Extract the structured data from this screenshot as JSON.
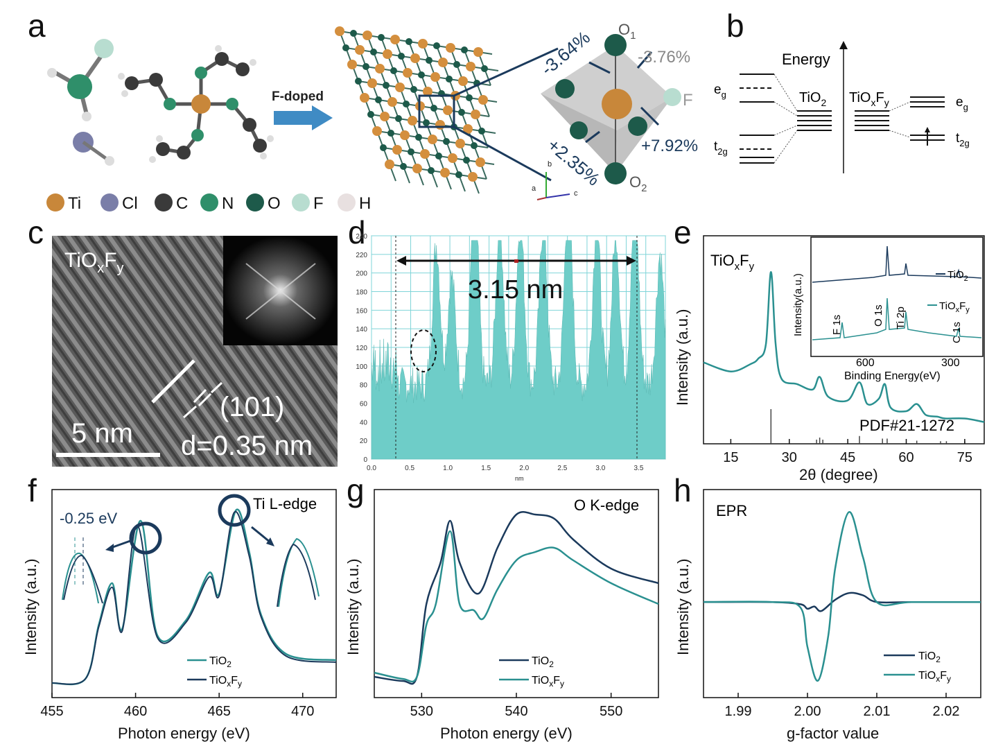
{
  "labels": {
    "a": "a",
    "b": "b",
    "c": "c",
    "d": "d",
    "e": "e",
    "f": "f",
    "g": "g",
    "h": "h"
  },
  "panel_a": {
    "arrow_label": "F-doped",
    "pct_1": "-3.64%",
    "pct_2": "-3.76%",
    "pct_3": "+2.35%",
    "pct_4": "+7.92%",
    "o1": "O",
    "o1_sub": "1",
    "o2": "O",
    "o2_sub": "2",
    "f": "F",
    "legend": [
      {
        "sym": "Ti",
        "color": "#c8873a"
      },
      {
        "sym": "Cl",
        "color": "#7a7ea8"
      },
      {
        "sym": "C",
        "color": "#3a3a3a"
      },
      {
        "sym": "N",
        "color": "#2f8f6a"
      },
      {
        "sym": "O",
        "color": "#1d5a4a"
      },
      {
        "sym": "F",
        "color": "#b8ddd0"
      },
      {
        "sym": "H",
        "color": "#e8e0e0"
      }
    ],
    "axis_b": "b",
    "axis_a": "a",
    "axis_c": "c"
  },
  "panel_b": {
    "energy": "Energy",
    "eg": "e",
    "eg_sub": "g",
    "t2g": "t",
    "t2g_sub": "2g",
    "tio2": "TiO",
    "tio2_sub": "2",
    "tioxfy": "TiO",
    "x": "x",
    "F": "F",
    "y": "y"
  },
  "panel_c": {
    "title": "TiO",
    "x": "x",
    "F": "F",
    "y": "y",
    "plane": "(101)",
    "dspacing": "d=0.35 nm",
    "scale": "5 nm"
  },
  "panel_d": {
    "annotation": "3.15 nm",
    "xlabel": "nm",
    "yticks": [
      "0",
      "20",
      "40",
      "60",
      "80",
      "100",
      "120",
      "140",
      "160",
      "180",
      "200",
      "220",
      "240"
    ],
    "xticks": [
      "0.0",
      "0.5",
      "1.0",
      "1.5",
      "2.0",
      "2.5",
      "3.0",
      "3.5"
    ]
  },
  "panel_e": {
    "title": "TiO",
    "x": "x",
    "F": "F",
    "y": "y",
    "ylabel": "Intensity (a.u.)",
    "xlabel": "2θ (degree)",
    "pdf": "PDF#21-1272",
    "xticks": [
      "15",
      "30",
      "45",
      "60",
      "75"
    ],
    "inset": {
      "ylabel": "Intensity(a.u.)",
      "xlabel": "Binding Energy(eV)",
      "xticks": [
        "600",
        "300"
      ],
      "peaks": [
        "F 1s",
        "O 1s",
        "Ti 2p",
        "C 1s"
      ],
      "legend_tio2": "TiO",
      "legend_tio2_sub": "2",
      "legend_tioxfy": "TiO"
    }
  },
  "panel_f": {
    "title": "Ti L-edge",
    "shift": "-0.25 eV",
    "ylabel": "Intensity (a.u.)",
    "xlabel": "Photon energy (eV)",
    "xticks": [
      "455",
      "460",
      "465",
      "470"
    ],
    "legend": [
      "TiO",
      "TiO"
    ]
  },
  "panel_g": {
    "title": "O K-edge",
    "ylabel": "Intensity (a.u.)",
    "xlabel": "Photon energy (eV)",
    "xticks": [
      "530",
      "540",
      "550"
    ],
    "legend": [
      "TiO",
      "TiO"
    ]
  },
  "panel_h": {
    "title": "EPR",
    "ylabel": "Intensity (a.u.)",
    "xlabel": "g-factor value",
    "xticks": [
      "1.99",
      "2.00",
      "2.01",
      "2.02"
    ],
    "legend": [
      "TiO",
      "TiO"
    ]
  },
  "colors": {
    "dark": "#1b3a5c",
    "teal": "#2a9090",
    "cyan": "#5fc4c4"
  },
  "chart_data": [
    {
      "type": "line",
      "title": "",
      "xlabel": "2θ (degree)",
      "ylabel": "Intensity (a.u.)",
      "xlim": [
        8,
        80
      ],
      "series": [
        {
          "name": "TiOxFy",
          "x": [
            8,
            15,
            20,
            22,
            24,
            25.3,
            26.5,
            28,
            32,
            36,
            37.8,
            40,
            45,
            48,
            50,
            53,
            54.5,
            56,
            60,
            62.7,
            65,
            68,
            70,
            75,
            80
          ],
          "y": [
            0.45,
            0.4,
            0.44,
            0.47,
            0.55,
            0.95,
            0.55,
            0.36,
            0.33,
            0.3,
            0.37,
            0.26,
            0.24,
            0.34,
            0.22,
            0.25,
            0.33,
            0.2,
            0.18,
            0.22,
            0.16,
            0.15,
            0.14,
            0.14,
            0.12
          ]
        }
      ]
    },
    {
      "type": "line",
      "title": "Ti L-edge",
      "xlabel": "Photon energy (eV)",
      "ylabel": "Intensity (a.u.)",
      "xlim": [
        455,
        472
      ],
      "series": [
        {
          "name": "TiO2",
          "x": [
            455,
            457,
            457.8,
            458.6,
            459.2,
            460.3,
            461.3,
            463,
            464.4,
            465,
            466,
            466.8,
            467.5,
            469,
            472
          ],
          "y": [
            0.02,
            0.04,
            0.3,
            0.5,
            0.28,
            0.8,
            0.25,
            0.32,
            0.55,
            0.45,
            0.85,
            0.65,
            0.35,
            0.16,
            0.13
          ]
        },
        {
          "name": "TiOxFy",
          "x": [
            455,
            457,
            457.8,
            458.6,
            459.2,
            460.1,
            461.3,
            463,
            464.4,
            465,
            465.9,
            466.8,
            467.5,
            469,
            472
          ],
          "y": [
            0.02,
            0.04,
            0.29,
            0.48,
            0.27,
            0.78,
            0.24,
            0.31,
            0.53,
            0.44,
            0.84,
            0.63,
            0.34,
            0.15,
            0.12
          ]
        }
      ]
    },
    {
      "type": "line",
      "title": "O K-edge",
      "xlabel": "Photon energy (eV)",
      "ylabel": "Intensity (a.u.)",
      "xlim": [
        525,
        555
      ],
      "series": [
        {
          "name": "TiO2",
          "x": [
            525,
            528,
            529.5,
            530.5,
            532,
            533,
            534,
            536,
            538,
            540,
            542,
            544,
            546,
            550,
            555
          ],
          "y": [
            0.1,
            0.08,
            0.1,
            0.45,
            0.65,
            0.85,
            0.65,
            0.5,
            0.72,
            0.88,
            0.88,
            0.86,
            0.76,
            0.62,
            0.55
          ]
        },
        {
          "name": "TiOxFy",
          "x": [
            525,
            528,
            529.5,
            530.5,
            531.5,
            533,
            534,
            535.5,
            536.5,
            538,
            540,
            542,
            544,
            546,
            550,
            555
          ],
          "y": [
            0.12,
            0.09,
            0.1,
            0.35,
            0.45,
            0.8,
            0.45,
            0.42,
            0.38,
            0.52,
            0.66,
            0.7,
            0.72,
            0.66,
            0.55,
            0.45
          ]
        }
      ]
    },
    {
      "type": "line",
      "title": "EPR",
      "xlabel": "g-factor value",
      "ylabel": "Intensity (a.u.)",
      "xlim": [
        1.985,
        2.025
      ],
      "series": [
        {
          "name": "TiO2",
          "x": [
            1.985,
            1.995,
            1.999,
            2.0,
            2.001,
            2.002,
            2.004,
            2.006,
            2.008,
            2.01,
            2.015,
            2.025
          ],
          "y": [
            0,
            0,
            -0.02,
            -0.06,
            -0.04,
            -0.08,
            0.02,
            0.08,
            0.06,
            0.0,
            0,
            0
          ]
        },
        {
          "name": "TiOxFy",
          "x": [
            1.985,
            1.995,
            1.999,
            2.0,
            2.0015,
            2.003,
            2.004,
            2.006,
            2.008,
            2.01,
            2.015,
            2.025
          ],
          "y": [
            0,
            0,
            -0.05,
            -0.4,
            -0.7,
            -0.3,
            0.3,
            0.8,
            0.4,
            0.0,
            0,
            0
          ]
        }
      ]
    }
  ]
}
